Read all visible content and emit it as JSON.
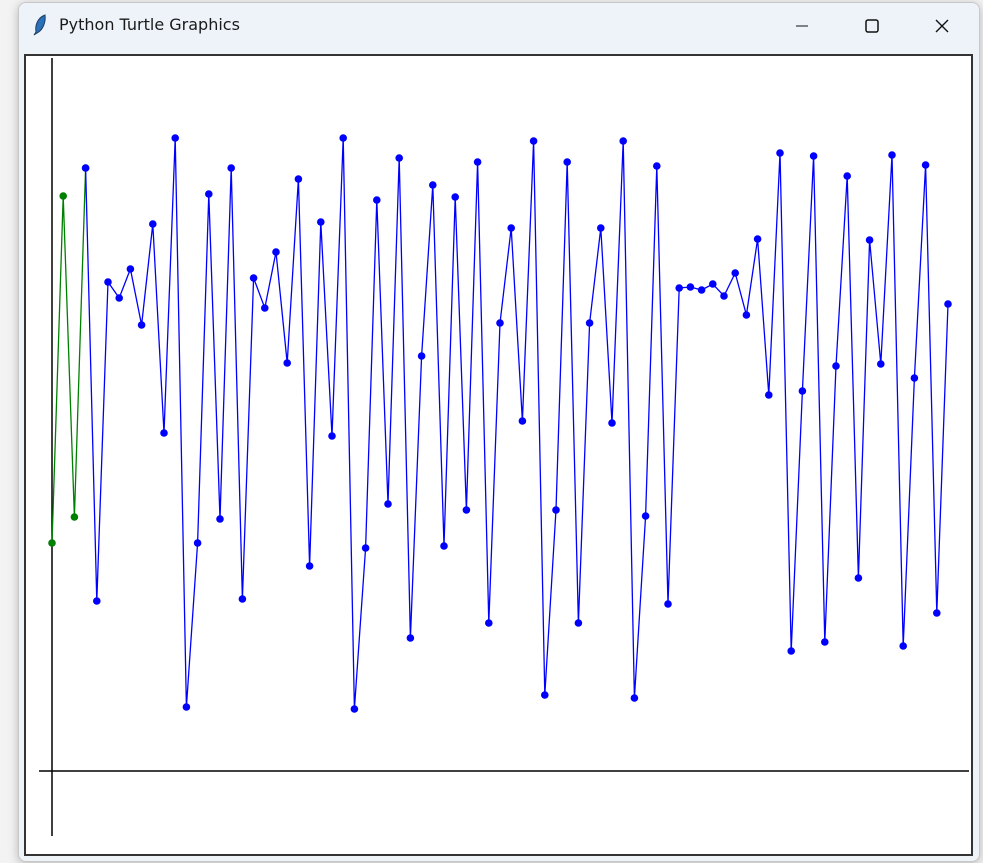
{
  "window": {
    "title": "Python Turtle Graphics",
    "icon": "feather-icon"
  },
  "controls": {
    "minimize": "minimize-icon",
    "maximize": "maximize-icon",
    "close": "close-icon"
  },
  "chart_data": {
    "type": "line",
    "grid": false,
    "axes_visible": true,
    "marker": "dot",
    "series": [
      {
        "color": "#008000",
        "x": [
          0,
          1,
          2,
          3
        ],
        "values": [
          228,
          575,
          254,
          603
        ]
      },
      {
        "color": "#0000ff",
        "x_start": 3,
        "values": [
          603,
          170,
          489,
          473,
          502,
          446,
          547,
          338,
          633,
          64,
          228,
          577,
          252,
          603,
          172,
          493,
          463,
          519,
          408,
          592,
          205,
          549,
          335,
          633,
          62,
          223,
          571,
          267,
          613,
          133,
          415,
          586,
          225,
          574,
          261,
          609,
          148,
          448,
          543,
          350,
          630,
          76,
          261,
          609,
          148,
          448,
          543,
          348,
          630,
          73,
          255,
          605,
          167,
          483,
          484,
          481,
          487,
          475,
          498,
          456,
          532,
          376,
          618,
          120,
          380,
          615,
          129,
          405,
          595,
          193,
          531,
          407,
          616,
          125,
          393,
          606,
          158,
          467
        ]
      }
    ],
    "axis_color": "#000000"
  }
}
